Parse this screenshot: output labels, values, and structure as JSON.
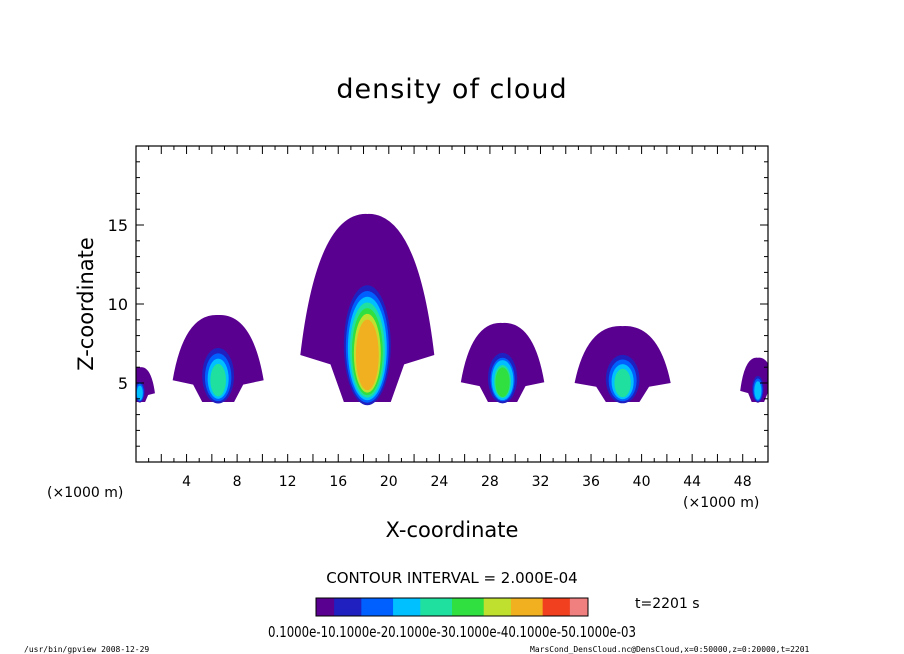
{
  "chart_data": {
    "type": "heatmap",
    "title": "density of cloud",
    "xlabel": "X-coordinate",
    "ylabel": "Z-coordinate",
    "x_unit_left": "(×1000 m)",
    "x_unit_right": "(×1000 m)",
    "xlim": [
      0,
      50
    ],
    "ylim": [
      0,
      20
    ],
    "x_ticks": [
      "4",
      "8",
      "12",
      "16",
      "20",
      "24",
      "28",
      "32",
      "36",
      "40",
      "44",
      "48"
    ],
    "x_tick_values": [
      4,
      8,
      12,
      16,
      20,
      24,
      28,
      32,
      36,
      40,
      44,
      48
    ],
    "y_ticks": [
      "5",
      "10",
      "15"
    ],
    "y_tick_values": [
      5,
      10,
      15
    ],
    "contour_interval": "CONTOUR INTERVAL = 2.000E-04",
    "time_label": "t=2201 s",
    "colorbar_labels": "0.1000e-10.1000e-20.1000e-30.1000e-40.1000e-50.1000e-03",
    "colorbar_range": [
      0.0,
      0.0012
    ],
    "colormap": [
      "#5a0090",
      "#2020c0",
      "#0060ff",
      "#00c0ff",
      "#20e0a0",
      "#30e040",
      "#c0e030",
      "#f0b020",
      "#f04020",
      "#f08080"
    ],
    "clouds": [
      {
        "x_center": 0.3,
        "z_base": 3.8,
        "top": 6.0,
        "half_width": 1.2,
        "peak_density": 0.0004
      },
      {
        "x_center": 6.5,
        "z_base": 3.8,
        "top": 9.3,
        "half_width": 3.6,
        "peak_density": 0.0005
      },
      {
        "x_center": 18.3,
        "z_base": 3.8,
        "top": 15.7,
        "half_width": 5.3,
        "peak_density": 0.0009
      },
      {
        "x_center": 29.0,
        "z_base": 3.8,
        "top": 8.8,
        "half_width": 3.3,
        "peak_density": 0.0006
      },
      {
        "x_center": 38.5,
        "z_base": 3.8,
        "top": 8.6,
        "half_width": 3.8,
        "peak_density": 0.0005
      },
      {
        "x_center": 49.2,
        "z_base": 3.8,
        "top": 6.6,
        "half_width": 1.4,
        "peak_density": 0.0004
      }
    ]
  },
  "footer": {
    "left": "/usr/bin/gpview   2008-12-29",
    "right": "MarsCond_DensCloud.nc@DensCloud,x=0:50000,z=0:20000,t=2201"
  }
}
